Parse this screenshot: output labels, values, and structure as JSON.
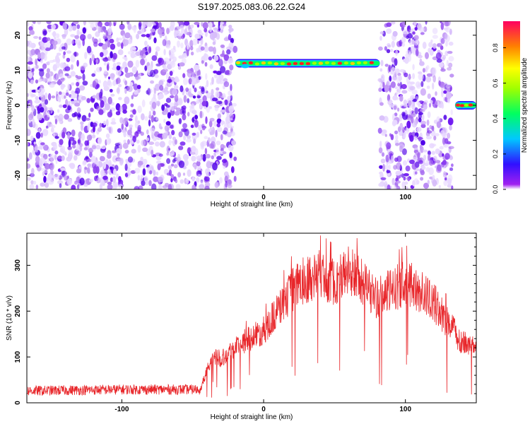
{
  "title": "S197.2025.083.06.22.G24",
  "chart_data": [
    {
      "type": "heatmap",
      "xlabel": "Height of straight line (km)",
      "ylabel": "Frequency (Hz)",
      "xlim": [
        -167,
        150
      ],
      "ylim": [
        -24,
        24
      ],
      "xticks": [
        -100,
        0,
        100
      ],
      "yticks": [
        -20,
        -10,
        0,
        10,
        20
      ],
      "colorbar": {
        "label": "Normalized spectral amplitude",
        "range": [
          0,
          0.95
        ],
        "ticks": [
          0.0,
          0.2,
          0.4,
          0.6,
          0.8
        ]
      },
      "noise_regions_km": [
        [
          -167,
          -20
        ],
        [
          82,
          133
        ]
      ],
      "signal_tracks": [
        {
          "x_start_km": -20,
          "x_end_km": 82,
          "frequency_hz": 12
        },
        {
          "x_start_km": 135,
          "x_end_km": 150,
          "frequency_hz": 0
        }
      ]
    },
    {
      "type": "line",
      "xlabel": "Height of straight line (km)",
      "ylabel": "SNR (10 * v/v)",
      "xlim": [
        -167,
        150
      ],
      "ylim": [
        0,
        370
      ],
      "xticks": [
        -100,
        0,
        100
      ],
      "yticks": [
        0,
        100,
        200,
        300
      ],
      "color": "#e8262a",
      "envelope": [
        {
          "x": -167,
          "y": 25
        },
        {
          "x": -100,
          "y": 28
        },
        {
          "x": -45,
          "y": 28
        },
        {
          "x": -40,
          "y": 80
        },
        {
          "x": -35,
          "y": 120
        },
        {
          "x": -30,
          "y": 110
        },
        {
          "x": -20,
          "y": 140
        },
        {
          "x": -10,
          "y": 160
        },
        {
          "x": 0,
          "y": 180
        },
        {
          "x": 10,
          "y": 230
        },
        {
          "x": 20,
          "y": 280
        },
        {
          "x": 30,
          "y": 310
        },
        {
          "x": 40,
          "y": 320
        },
        {
          "x": 50,
          "y": 300
        },
        {
          "x": 60,
          "y": 330
        },
        {
          "x": 70,
          "y": 300
        },
        {
          "x": 80,
          "y": 260
        },
        {
          "x": 90,
          "y": 280
        },
        {
          "x": 100,
          "y": 300
        },
        {
          "x": 110,
          "y": 280
        },
        {
          "x": 120,
          "y": 250
        },
        {
          "x": 130,
          "y": 200
        },
        {
          "x": 140,
          "y": 150
        },
        {
          "x": 150,
          "y": 140
        }
      ]
    }
  ]
}
